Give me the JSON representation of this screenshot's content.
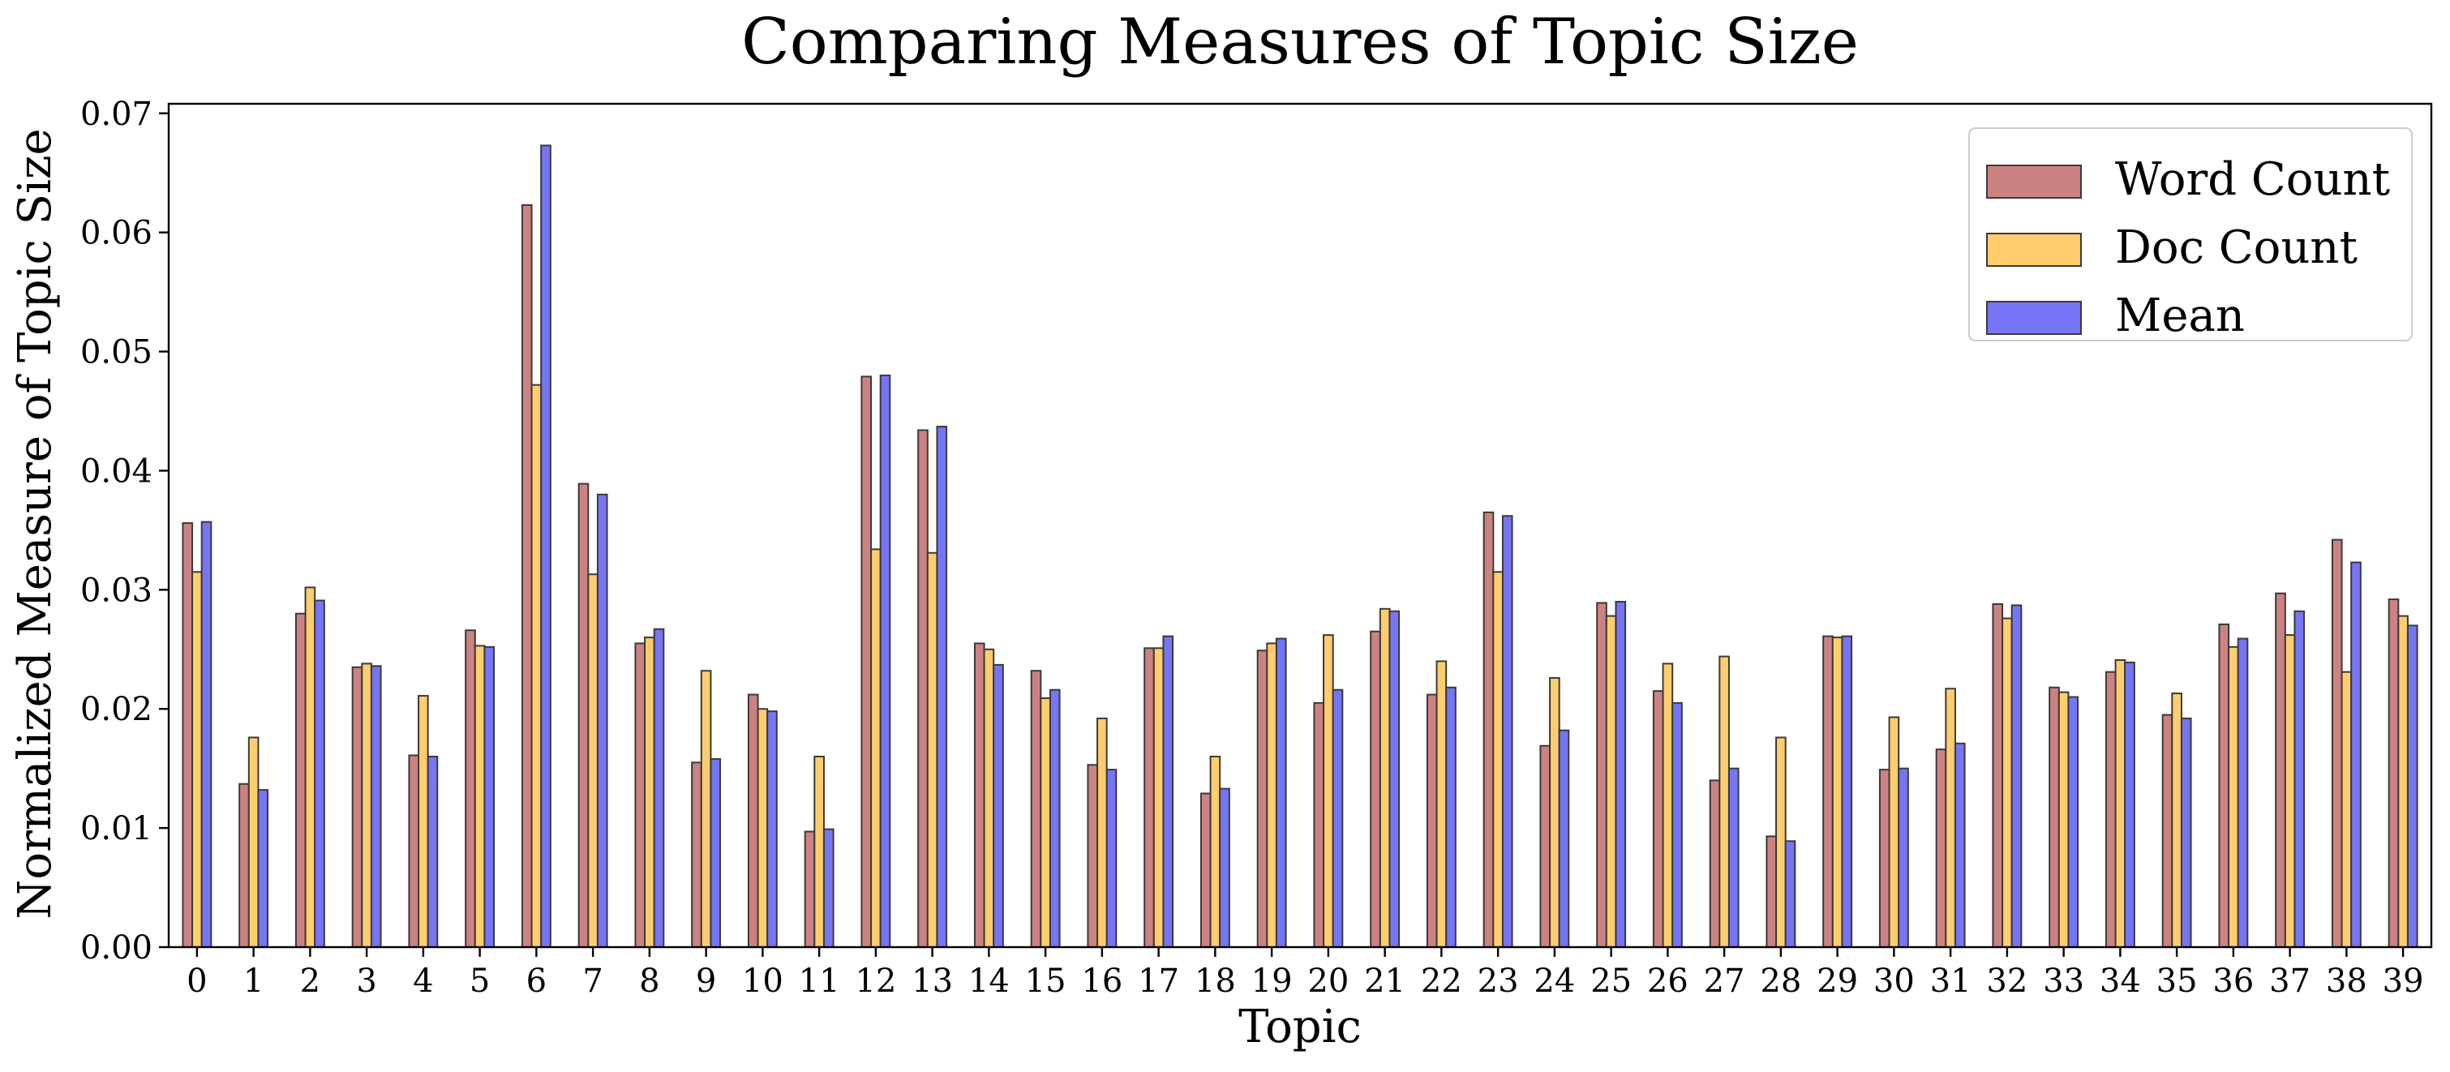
{
  "chart_data": {
    "type": "bar",
    "title": "Comparing Measures of Topic Size",
    "xlabel": "Topic",
    "ylabel": "Normalized Measure of Topic Size",
    "ylim": [
      0,
      0.0708
    ],
    "yticks": [
      "0.00",
      "0.01",
      "0.02",
      "0.03",
      "0.04",
      "0.05",
      "0.06",
      "0.07"
    ],
    "grid": false,
    "legend_position": "top-right",
    "categories": [
      "0",
      "1",
      "2",
      "3",
      "4",
      "5",
      "6",
      "7",
      "8",
      "9",
      "10",
      "11",
      "12",
      "13",
      "14",
      "15",
      "16",
      "17",
      "18",
      "19",
      "20",
      "21",
      "22",
      "23",
      "24",
      "25",
      "26",
      "27",
      "28",
      "29",
      "30",
      "31",
      "32",
      "33",
      "34",
      "35",
      "36",
      "37",
      "38",
      "39"
    ],
    "series": [
      {
        "name": "Word Count",
        "color": "#cd8282",
        "values": [
          0.0356,
          0.0137,
          0.028,
          0.0235,
          0.0161,
          0.0266,
          0.0623,
          0.0389,
          0.0255,
          0.0155,
          0.0212,
          0.0097,
          0.0479,
          0.0434,
          0.0255,
          0.0232,
          0.0153,
          0.0251,
          0.0129,
          0.0249,
          0.0205,
          0.0265,
          0.0212,
          0.0365,
          0.0169,
          0.0289,
          0.0215,
          0.014,
          0.0093,
          0.0261,
          0.0149,
          0.0166,
          0.0288,
          0.0218,
          0.0231,
          0.0195,
          0.0271,
          0.0297,
          0.0342,
          0.0292
        ]
      },
      {
        "name": "Doc Count",
        "color": "#ffcd6e",
        "values": [
          0.0315,
          0.0176,
          0.0302,
          0.0238,
          0.0211,
          0.0253,
          0.0472,
          0.0313,
          0.026,
          0.0232,
          0.02,
          0.016,
          0.0334,
          0.0331,
          0.025,
          0.0209,
          0.0192,
          0.0251,
          0.016,
          0.0255,
          0.0262,
          0.0284,
          0.024,
          0.0315,
          0.0226,
          0.0278,
          0.0238,
          0.0244,
          0.0176,
          0.026,
          0.0193,
          0.0217,
          0.0276,
          0.0214,
          0.0241,
          0.0213,
          0.0252,
          0.0262,
          0.0231,
          0.0278
        ]
      },
      {
        "name": "Mean",
        "color": "#7575f5",
        "values": [
          0.0357,
          0.0132,
          0.0291,
          0.0236,
          0.016,
          0.0252,
          0.0673,
          0.038,
          0.0267,
          0.0158,
          0.0198,
          0.0099,
          0.048,
          0.0437,
          0.0237,
          0.0216,
          0.0149,
          0.0261,
          0.0133,
          0.0259,
          0.0216,
          0.0282,
          0.0218,
          0.0362,
          0.0182,
          0.029,
          0.0205,
          0.015,
          0.0089,
          0.0261,
          0.015,
          0.0171,
          0.0287,
          0.021,
          0.0239,
          0.0192,
          0.0259,
          0.0282,
          0.0323,
          0.027
        ]
      }
    ]
  }
}
